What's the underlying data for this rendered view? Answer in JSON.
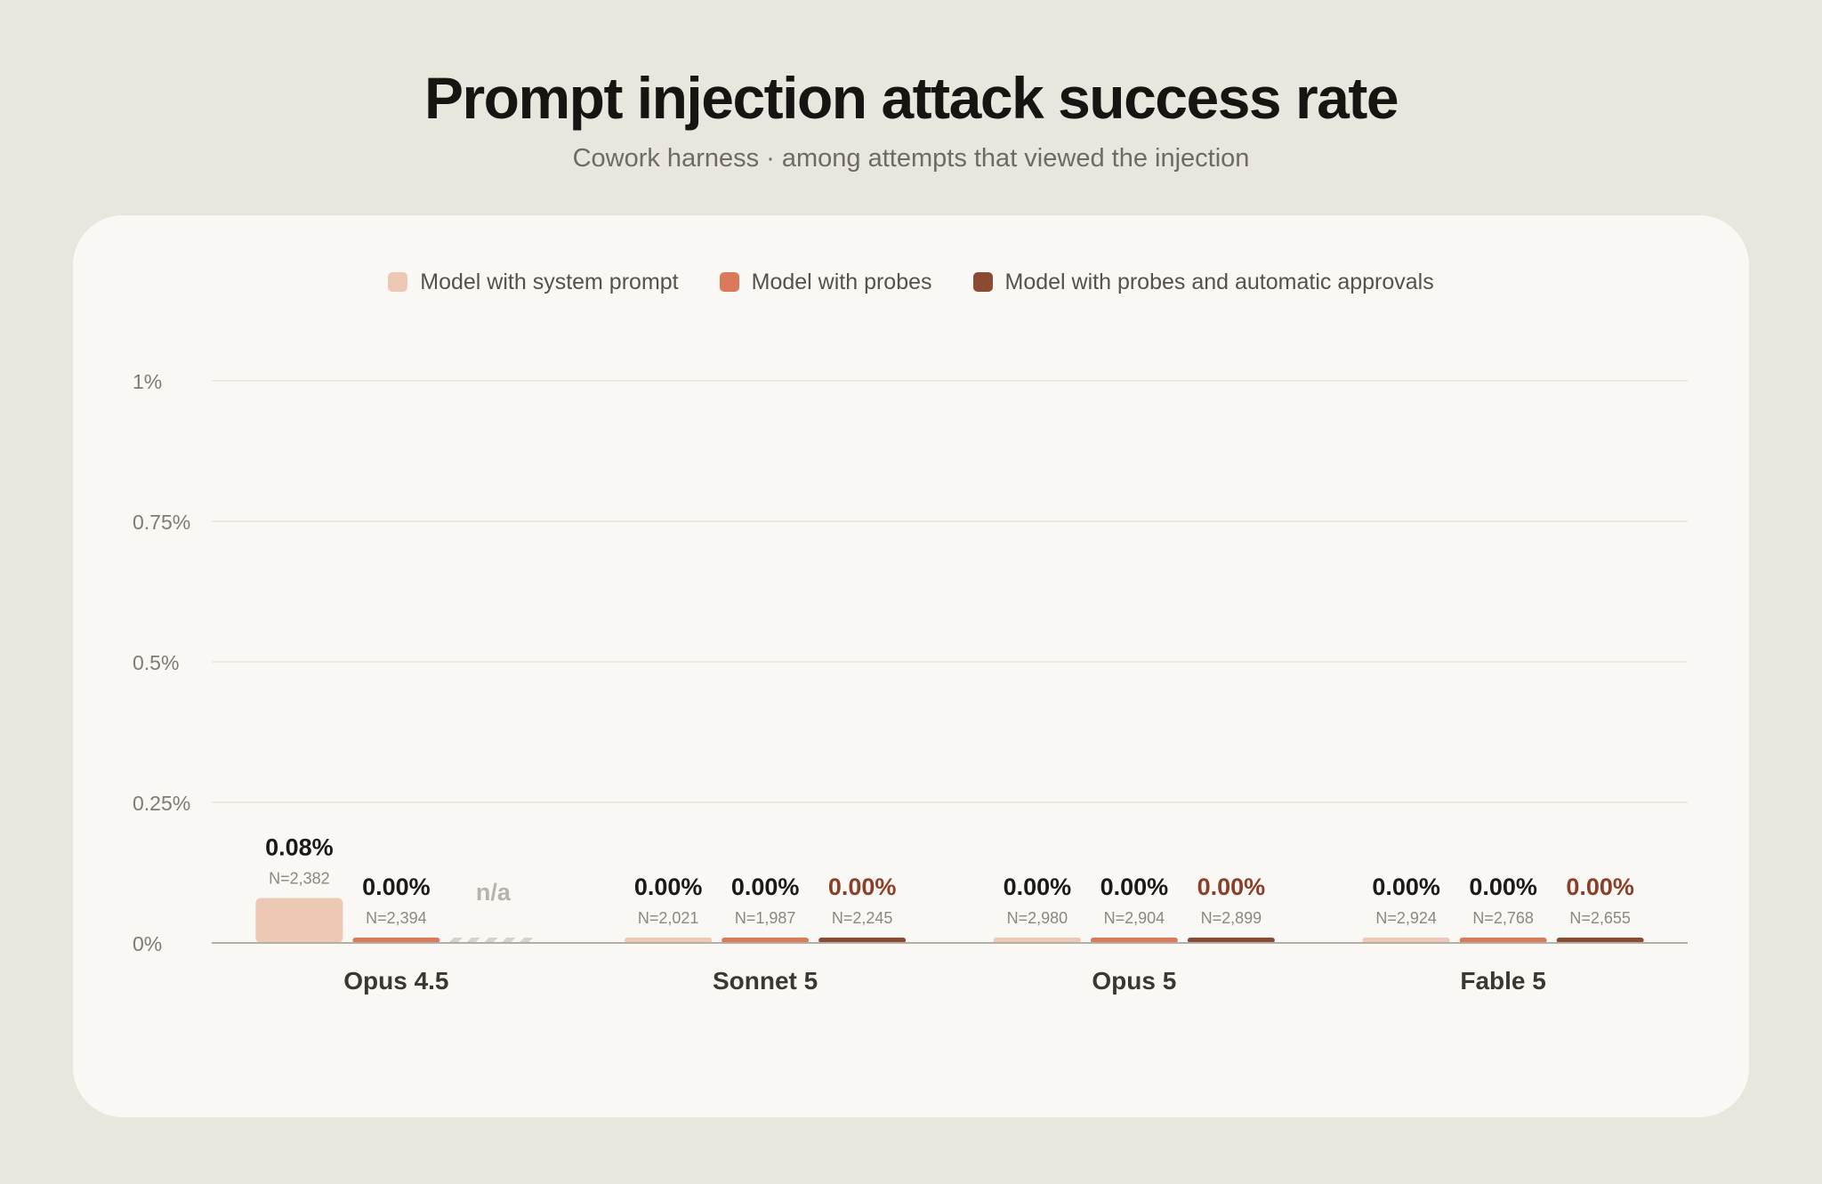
{
  "header": {
    "title": "Prompt injection attack success rate",
    "subtitle": "Cowork harness · among attempts that viewed the injection"
  },
  "colors": {
    "system_prompt": "#ecc8b5",
    "probes": "#da7a58",
    "probes_auto": "#8b4a32",
    "na_hatch": "#d6d3cc",
    "grid": "#e8e6e0",
    "axis": "#b3afa7",
    "value_text": "#1c1a17",
    "value_text_dark_series": "#8b3f28",
    "na_text": "#b7b3ab"
  },
  "chart_data": {
    "type": "bar",
    "ylim": [
      0,
      1
    ],
    "yticks": [
      {
        "value": 0,
        "label": "0%"
      },
      {
        "value": 0.25,
        "label": "0.25%"
      },
      {
        "value": 0.5,
        "label": "0.5%"
      },
      {
        "value": 0.75,
        "label": "0.75%"
      },
      {
        "value": 1,
        "label": "1%"
      }
    ],
    "grid": true,
    "legend_position": "top-center",
    "categories": [
      "Opus 4.5",
      "Sonnet 5",
      "Opus 5",
      "Fable 5"
    ],
    "series": [
      {
        "name": "Model with system prompt",
        "color_key": "system_prompt",
        "values": [
          0.08,
          0.0,
          0.0,
          0.0
        ],
        "labels": [
          "0.08%",
          "0.00%",
          "0.00%",
          "0.00%"
        ],
        "n": [
          "N=2,382",
          "N=2,021",
          "N=2,980",
          "N=2,924"
        ]
      },
      {
        "name": "Model with probes",
        "color_key": "probes",
        "values": [
          0.0,
          0.0,
          0.0,
          0.0
        ],
        "labels": [
          "0.00%",
          "0.00%",
          "0.00%",
          "0.00%"
        ],
        "n": [
          "N=2,394",
          "N=1,987",
          "N=2,904",
          "N=2,768"
        ]
      },
      {
        "name": "Model with probes and automatic approvals",
        "color_key": "probes_auto",
        "values": [
          null,
          0.0,
          0.0,
          0.0
        ],
        "labels": [
          "n/a",
          "0.00%",
          "0.00%",
          "0.00%"
        ],
        "n": [
          "",
          "N=2,245",
          "N=2,899",
          "N=2,655"
        ]
      }
    ]
  }
}
